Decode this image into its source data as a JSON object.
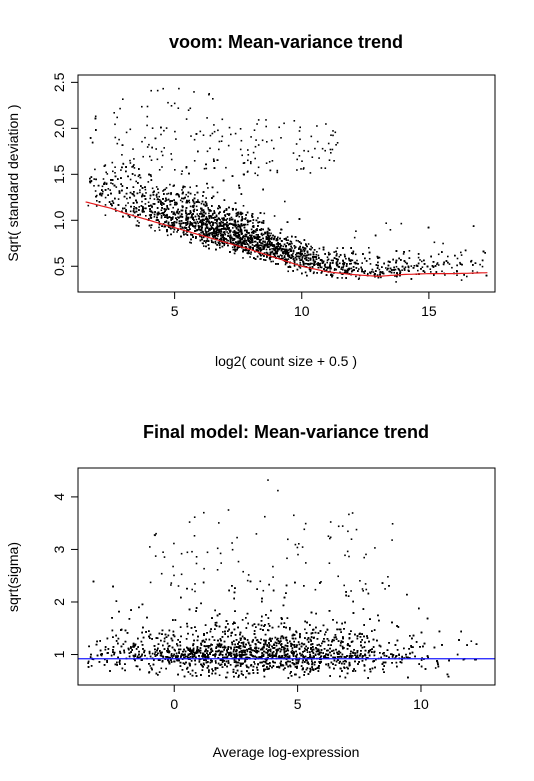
{
  "chart_data": [
    {
      "type": "scatter",
      "title": "voom: Mean-variance trend",
      "xlabel": "log2( count size + 0.5 )",
      "ylabel": "Sqrt( standard deviation )",
      "xlim": [
        1.2,
        17.6
      ],
      "ylim": [
        0.22,
        2.58
      ],
      "xticks": [
        5,
        10,
        15
      ],
      "yticks": [
        0.5,
        1.0,
        1.5,
        2.0,
        2.5
      ],
      "ytick_labels": [
        "0.5",
        "1.0",
        "1.5",
        "2.0",
        "2.5"
      ],
      "grid": false,
      "point_color": "#000000",
      "series": [
        {
          "kind": "points",
          "description_values": "dense cloud of genes; x from about 1.5 to 17.3, sqrt(sd) mostly 0.3-1.5, scattered outliers up to about 2.45 near x=5"
        },
        {
          "kind": "trend-line",
          "color": "#e41a1c",
          "x": [
            1.5,
            2.5,
            3.0,
            4.0,
            5.0,
            6.0,
            7.0,
            8.0,
            9.0,
            10.0,
            11.0,
            12.0,
            13.0,
            14.0,
            15.0,
            16.0,
            17.3
          ],
          "y": [
            1.2,
            1.13,
            1.08,
            1.0,
            0.92,
            0.84,
            0.76,
            0.68,
            0.59,
            0.5,
            0.44,
            0.41,
            0.39,
            0.41,
            0.42,
            0.42,
            0.43
          ]
        }
      ]
    },
    {
      "type": "scatter",
      "title": "Final model: Mean-variance trend",
      "xlabel": "Average log-expression",
      "ylabel": "sqrt(sigma)",
      "xlim": [
        -3.9,
        13.0
      ],
      "ylim": [
        0.42,
        4.55
      ],
      "xticks": [
        0,
        5,
        10
      ],
      "yticks": [
        1,
        2,
        3,
        4
      ],
      "ytick_labels": [
        "1",
        "2",
        "3",
        "4"
      ],
      "grid": false,
      "point_color": "#000000",
      "series": [
        {
          "kind": "points",
          "description_values": "dense cloud; x from about -3.5 to 12.5, sqrt(sigma) mostly 0.6-1.6, outliers up to about 4.3 near x=3.8"
        },
        {
          "kind": "hline",
          "color": "#1a1aff",
          "y": 0.92
        }
      ]
    }
  ]
}
